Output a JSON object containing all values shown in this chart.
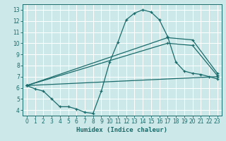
{
  "xlabel": "Humidex (Indice chaleur)",
  "bg_color": "#cde8e8",
  "grid_color": "#b8d8d8",
  "line_color": "#1a6b6b",
  "xlim": [
    -0.5,
    23.5
  ],
  "ylim": [
    3.5,
    13.5
  ],
  "xticks": [
    0,
    1,
    2,
    3,
    4,
    5,
    6,
    7,
    8,
    9,
    10,
    11,
    12,
    13,
    14,
    15,
    16,
    17,
    18,
    19,
    20,
    21,
    22,
    23
  ],
  "yticks": [
    4,
    5,
    6,
    7,
    8,
    9,
    10,
    11,
    12,
    13
  ],
  "line1_x": [
    0,
    1,
    2,
    3,
    4,
    5,
    6,
    7,
    8,
    9,
    10,
    11,
    12,
    13,
    14,
    15,
    16,
    17,
    18,
    19,
    20,
    21,
    22,
    23
  ],
  "line1_y": [
    6.2,
    5.9,
    5.7,
    5.0,
    4.3,
    4.3,
    4.1,
    3.8,
    3.7,
    5.7,
    8.3,
    10.1,
    12.1,
    12.7,
    13.0,
    12.8,
    12.1,
    10.6,
    8.3,
    7.5,
    7.3,
    7.2,
    7.0,
    6.8
  ],
  "line2_x": [
    0,
    17,
    20,
    23
  ],
  "line2_y": [
    6.2,
    10.5,
    10.3,
    7.3
  ],
  "line3_x": [
    0,
    17,
    20,
    23
  ],
  "line3_y": [
    6.2,
    10.0,
    9.8,
    7.1
  ],
  "line4_x": [
    0,
    23
  ],
  "line4_y": [
    6.2,
    7.0
  ]
}
